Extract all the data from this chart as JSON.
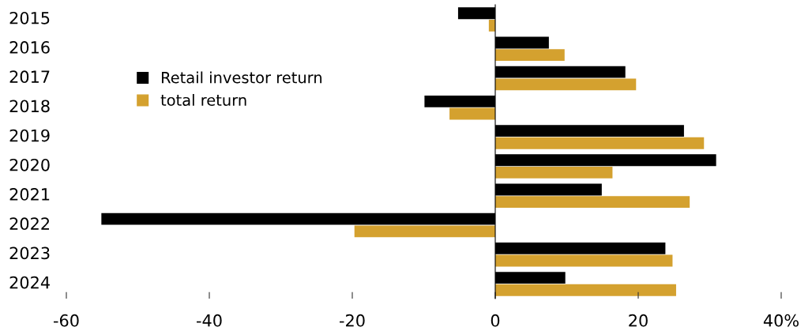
{
  "chart_data": {
    "type": "bar",
    "orientation": "horizontal",
    "categories": [
      "2015",
      "2016",
      "2017",
      "2018",
      "2019",
      "2020",
      "2021",
      "2022",
      "2023",
      "2024"
    ],
    "series": [
      {
        "name": "Retail investor return",
        "color": "#000000",
        "values": [
          -5.2,
          7.5,
          18.2,
          -9.9,
          26.4,
          30.9,
          14.9,
          -55.1,
          23.8,
          9.8
        ]
      },
      {
        "name": "total return",
        "color": "#d4a12f",
        "values": [
          -0.9,
          9.7,
          19.7,
          -6.4,
          29.2,
          16.4,
          27.2,
          -19.7,
          24.8,
          25.3
        ]
      }
    ],
    "xlim": [
      -60,
      40
    ],
    "xticks": [
      -60,
      -40,
      -20,
      0,
      20,
      {
        "value": 40,
        "label": "40%"
      }
    ],
    "legend": "top left"
  }
}
